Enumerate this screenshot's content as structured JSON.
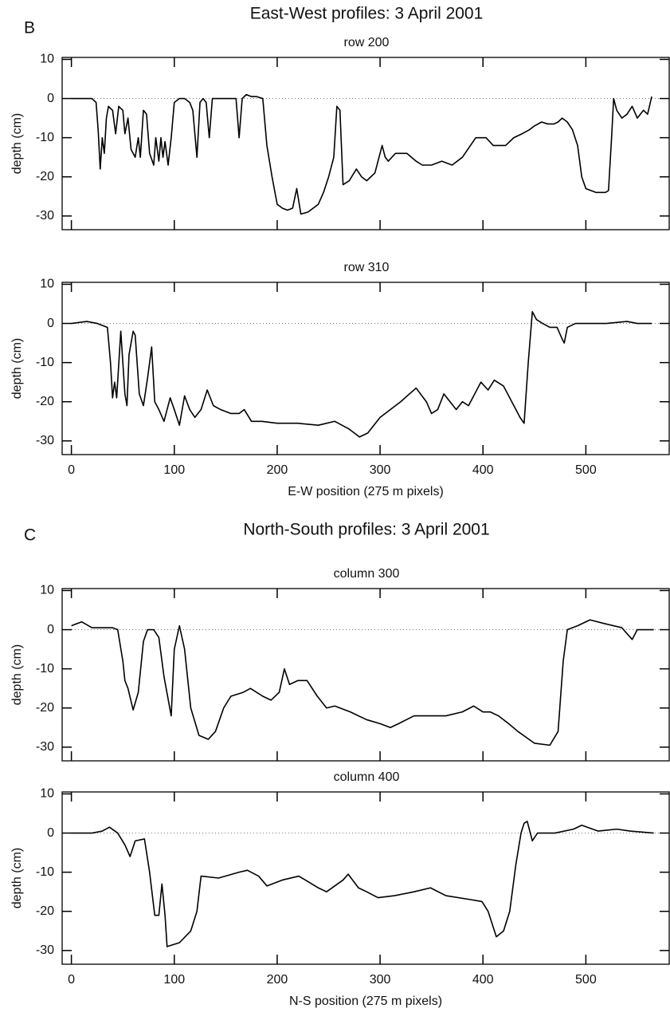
{
  "panels": [
    {
      "label": "B",
      "title": "East-West profiles: 3 April 2001"
    },
    {
      "label": "C",
      "title": "North-South profiles: 3 April 2001"
    }
  ],
  "chart_data": [
    {
      "type": "line",
      "title": "row 200",
      "ylabel": "depth (cm)",
      "color": "#000000",
      "xlim": [
        -9,
        581
      ],
      "ylim": [
        -33.5,
        10.5
      ],
      "xticks": [
        0,
        100,
        200,
        300,
        400,
        500
      ],
      "yticks": [
        -30,
        -20,
        -10,
        0,
        10
      ],
      "show_xtick_labels": false,
      "hline": 0,
      "x": [
        0,
        10,
        20,
        24,
        26,
        28,
        30,
        32,
        34,
        36,
        40,
        43,
        46,
        50,
        52,
        55,
        58,
        62,
        65,
        67,
        70,
        73,
        76,
        80,
        82,
        85,
        87,
        89,
        91,
        94,
        97,
        100,
        105,
        110,
        115,
        118,
        122,
        125,
        128,
        131,
        134,
        137,
        145,
        155,
        160,
        163,
        166,
        170,
        175,
        180,
        186,
        190,
        195,
        200,
        205,
        210,
        215,
        219,
        223,
        230,
        240,
        245,
        250,
        255,
        258,
        261,
        264,
        270,
        277,
        282,
        287,
        295,
        302,
        305,
        308,
        315,
        326,
        335,
        341,
        350,
        360,
        370,
        380,
        393,
        403,
        410,
        415,
        422,
        430,
        438,
        445,
        450,
        457,
        463,
        469,
        473,
        477,
        482,
        487,
        492,
        496,
        500,
        510,
        519,
        522,
        525,
        527,
        530,
        535,
        540,
        545,
        550,
        556,
        560,
        564
      ],
      "values": [
        0,
        0,
        0,
        -1,
        -8,
        -18,
        -10,
        -14,
        -5,
        -2,
        -3,
        -9,
        -2,
        -3,
        -9,
        -5,
        -13,
        -15,
        -10,
        -15,
        -3,
        -4,
        -14,
        -17,
        -10,
        -16,
        -10,
        -15,
        -11,
        -17,
        -10,
        -1,
        0,
        0,
        -1,
        -3,
        -15,
        -1,
        0,
        -1,
        -10,
        0,
        0,
        0,
        0,
        -10,
        0,
        1,
        0.5,
        0.5,
        0,
        -12,
        -20,
        -27,
        -28,
        -28.5,
        -28,
        -23,
        -29.5,
        -29,
        -27,
        -24,
        -20,
        -15,
        -2,
        -3,
        -22,
        -21,
        -18,
        -20,
        -21,
        -19,
        -12,
        -15,
        -16,
        -14,
        -14,
        -16,
        -17,
        -17,
        -16,
        -17,
        -15,
        -10,
        -10,
        -12,
        -12,
        -12,
        -10,
        -9,
        -8,
        -7,
        -6,
        -6.5,
        -6.5,
        -6,
        -5,
        -6,
        -8,
        -12,
        -20,
        -23,
        -24,
        -24,
        -23.5,
        -10,
        0,
        -3,
        -5,
        -4,
        -2,
        -5,
        -3,
        -4,
        0.5
      ]
    },
    {
      "type": "line",
      "title": "row 310",
      "ylabel": "depth (cm)",
      "xlabel": "E-W position (275 m pixels)",
      "color": "#000000",
      "xlim": [
        -9,
        581
      ],
      "ylim": [
        -33.5,
        10.5
      ],
      "xticks": [
        0,
        100,
        200,
        300,
        400,
        500
      ],
      "yticks": [
        -30,
        -20,
        -10,
        0,
        10
      ],
      "show_xtick_labels": true,
      "hline": 0,
      "x": [
        0,
        15,
        25,
        35,
        38,
        40,
        42,
        44,
        48,
        52,
        54,
        56,
        60,
        62,
        66,
        70,
        74,
        78,
        81,
        85,
        90,
        96,
        100,
        105,
        110,
        115,
        120,
        126,
        132,
        138,
        145,
        155,
        163,
        168,
        175,
        185,
        200,
        220,
        240,
        256,
        270,
        280,
        288,
        300,
        320,
        335,
        345,
        350,
        356,
        362,
        368,
        374,
        380,
        386,
        392,
        398,
        405,
        411,
        420,
        430,
        436,
        440,
        444,
        448,
        452,
        458,
        465,
        472,
        477,
        479,
        482,
        490,
        500,
        520,
        540,
        550,
        564
      ],
      "values": [
        0,
        0.5,
        0,
        -1,
        -10,
        -19,
        -15,
        -19,
        -2,
        -18,
        -21,
        -8,
        -2,
        -3,
        -18,
        -21,
        -14,
        -6,
        -20,
        -22,
        -25,
        -19,
        -22,
        -26,
        -18.5,
        -22,
        -24,
        -22,
        -17,
        -21,
        -22,
        -23,
        -23,
        -22,
        -25,
        -25,
        -25.5,
        -25.5,
        -26,
        -25,
        -27,
        -29,
        -28,
        -24,
        -20,
        -16.5,
        -20,
        -23,
        -22,
        -18,
        -20,
        -22,
        -20,
        -21,
        -18,
        -15,
        -17,
        -14.5,
        -16,
        -21,
        -24,
        -25.5,
        -10,
        3,
        1,
        0,
        -1,
        -1,
        -4,
        -5,
        -1,
        0,
        0,
        0,
        0.5,
        0,
        0
      ]
    },
    {
      "type": "line",
      "title": "column 300",
      "ylabel": "depth (cm)",
      "color": "#000000",
      "xlim": [
        -9,
        581
      ],
      "ylim": [
        -33.5,
        10.5
      ],
      "xticks": [
        0,
        100,
        200,
        300,
        400,
        500
      ],
      "yticks": [
        -30,
        -20,
        -10,
        0,
        10
      ],
      "show_xtick_labels": false,
      "hline": 0,
      "x": [
        0,
        5,
        10,
        20,
        30,
        40,
        45,
        50,
        52,
        55,
        60,
        65,
        70,
        74,
        80,
        85,
        90,
        97,
        100,
        105,
        110,
        116,
        124,
        133,
        140,
        148,
        155,
        167,
        174,
        186,
        194,
        202,
        207,
        212,
        220,
        229,
        239,
        248,
        256,
        271,
        287,
        300,
        310,
        318,
        333,
        350,
        364,
        380,
        391,
        400,
        407,
        415,
        425,
        434,
        450,
        465,
        473,
        478,
        482,
        492,
        504,
        519,
        535,
        545,
        550,
        566
      ],
      "values": [
        1,
        1.5,
        2,
        0.5,
        0.5,
        0.5,
        0,
        -8,
        -13,
        -15,
        -20.5,
        -16,
        -3,
        0,
        0,
        -2,
        -12,
        -22,
        -5,
        1,
        -5,
        -20,
        -27,
        -28,
        -26,
        -20,
        -17,
        -16,
        -15,
        -17,
        -18,
        -16,
        -10,
        -14,
        -13,
        -13,
        -17,
        -20,
        -19.5,
        -21,
        -23,
        -24,
        -25,
        -24,
        -22,
        -22,
        -22,
        -21,
        -19.5,
        -21,
        -21,
        -22,
        -24,
        -26,
        -29,
        -29.5,
        -26,
        -8,
        0,
        1,
        2.5,
        1.5,
        0.5,
        -2.5,
        0,
        0
      ]
    },
    {
      "type": "line",
      "title": "column 400",
      "ylabel": "depth (cm)",
      "xlabel": "N-S position (275 m pixels)",
      "color": "#000000",
      "xlim": [
        -9,
        581
      ],
      "ylim": [
        -33.5,
        10.5
      ],
      "xticks": [
        0,
        100,
        200,
        300,
        400,
        500
      ],
      "yticks": [
        -30,
        -20,
        -10,
        0,
        10
      ],
      "show_xtick_labels": true,
      "hline": 0,
      "x": [
        0,
        20,
        30,
        37,
        45,
        52,
        57,
        62,
        71,
        76,
        81,
        85,
        88,
        91,
        93,
        105,
        116,
        122,
        126,
        143,
        163,
        171,
        182,
        190,
        205,
        221,
        240,
        248,
        264,
        269,
        279,
        287,
        298,
        314,
        333,
        349,
        364,
        388,
        399,
        405,
        413,
        420,
        426,
        432,
        437,
        440,
        443,
        448,
        453,
        470,
        488,
        496,
        512,
        530,
        543,
        566
      ],
      "values": [
        0,
        0,
        0.5,
        1.5,
        0,
        -3,
        -6,
        -2,
        -1.5,
        -10,
        -21,
        -21,
        -13,
        -21,
        -29,
        -28,
        -25,
        -20,
        -11,
        -11.5,
        -10,
        -9.5,
        -11,
        -13.5,
        -12,
        -11,
        -14,
        -15,
        -12,
        -10.5,
        -14,
        -15,
        -16.5,
        -16,
        -15,
        -14,
        -16,
        -17,
        -17.5,
        -20,
        -26.5,
        -25,
        -20,
        -8,
        0,
        2.5,
        3,
        -2,
        0,
        0,
        1,
        2,
        0.5,
        1,
        0.5,
        0
      ]
    }
  ]
}
